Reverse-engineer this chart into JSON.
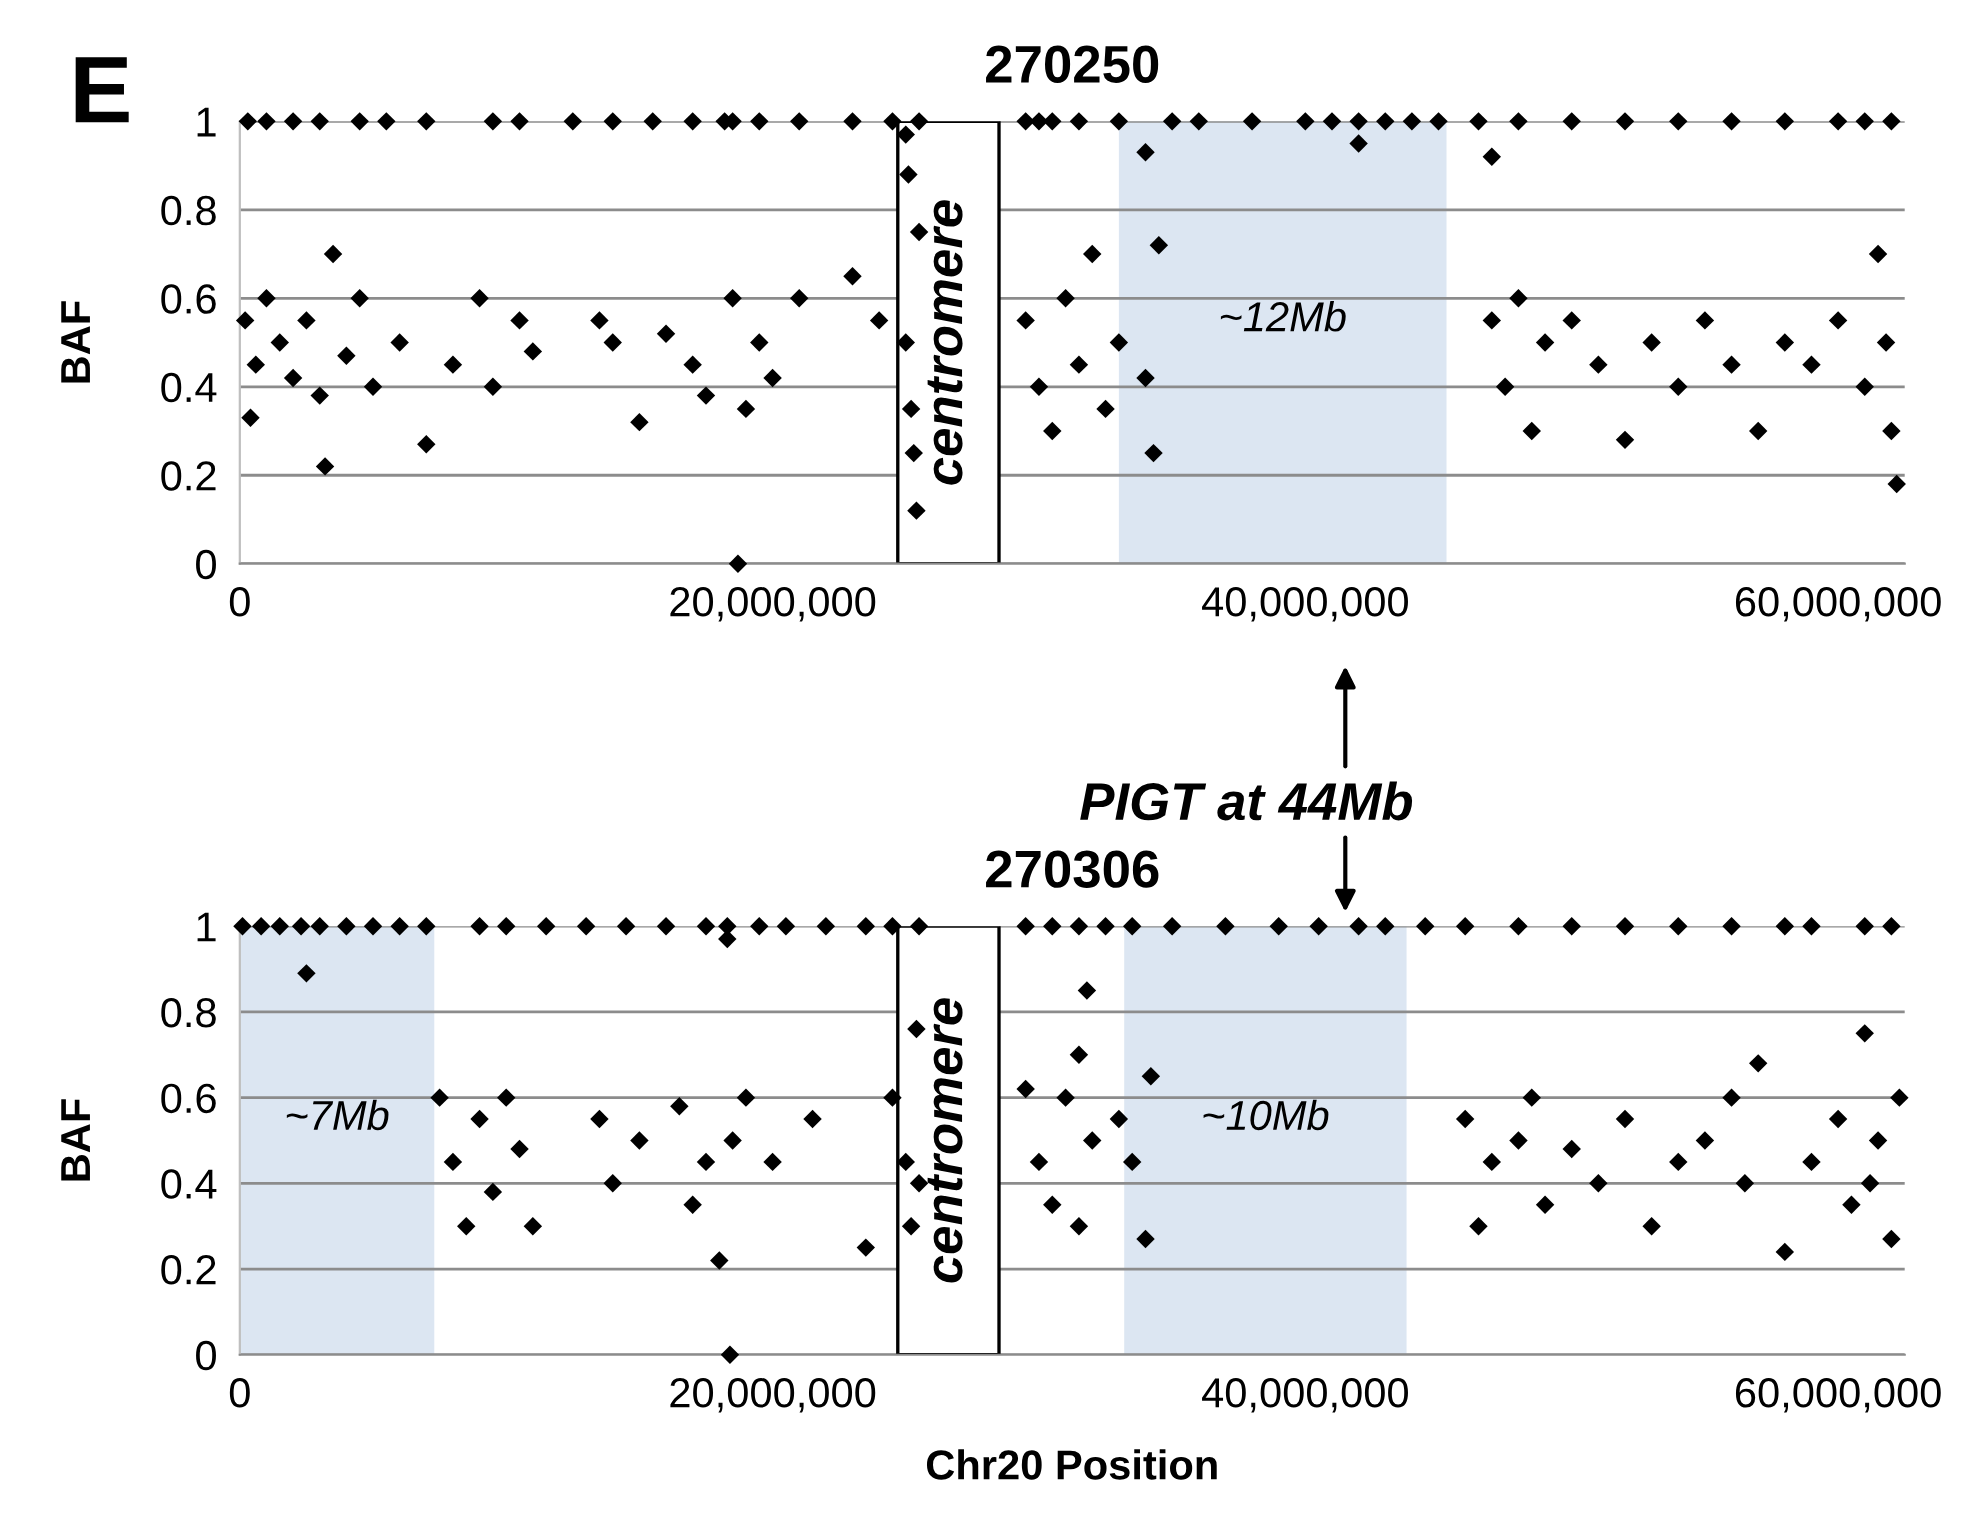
{
  "chart_data": [
    {
      "type": "scatter",
      "title": "270250",
      "ylabel": "BAF",
      "annotations": [
        "E"
      ],
      "marker": "diamond",
      "grid": "y",
      "xlim": [
        0,
        62500000
      ],
      "ylim": [
        0,
        1
      ],
      "xticks": [
        0,
        {
          "value": 20000000,
          "label": "20,000,000"
        },
        {
          "value": 40000000,
          "label": "40,000,000"
        },
        {
          "value": 60000000,
          "label": "60,000,000"
        }
      ],
      "yticks": [
        0,
        0.2,
        0.4,
        0.6,
        0.8,
        1
      ],
      "bands": [
        {
          "axis": "x",
          "from": 24700000,
          "to": 28500000,
          "label": "centromere",
          "color": "#ffffff"
        },
        {
          "axis": "x",
          "from": 33000000,
          "to": 45300000,
          "label": "~12Mb",
          "color": "#dce6f2"
        }
      ],
      "series": [
        {
          "color": "#000000",
          "x": [
            300000,
            1000000,
            2000000,
            3000000,
            4500000,
            5500000,
            7000000,
            9500000,
            10500000,
            12500000,
            14000000,
            15500000,
            17000000,
            18200000,
            18500000,
            19500000,
            21000000,
            23000000,
            24500000,
            25500000,
            30000000,
            29500000,
            30500000,
            31500000,
            33000000,
            35000000,
            36000000,
            38000000,
            40000000,
            41000000,
            42000000,
            43000000,
            44000000,
            45000000,
            46500000,
            48000000,
            50000000,
            52000000,
            54000000,
            56000000,
            58000000,
            60000000,
            61000000,
            62000000,
            200000,
            400000,
            600000,
            1000000,
            1500000,
            2000000,
            2500000,
            3000000,
            3200000,
            3500000,
            4000000,
            4500000,
            5000000,
            6000000,
            7000000,
            8000000,
            9000000,
            9500000,
            10500000,
            11000000,
            13500000,
            14000000,
            15000000,
            16000000,
            17000000,
            17500000,
            18500000,
            19000000,
            19500000,
            20000000,
            21000000,
            23000000,
            24000000,
            25000000,
            25200000,
            25400000,
            25500000,
            25300000,
            25100000,
            18700000,
            29500000,
            30000000,
            30500000,
            31000000,
            31500000,
            32000000,
            32500000,
            33000000,
            34000000,
            34500000,
            34300000,
            47000000,
            47500000,
            48000000,
            48500000,
            49000000,
            50000000,
            51000000,
            52000000,
            53000000,
            54000000,
            55000000,
            56000000,
            57000000,
            58000000,
            59000000,
            60000000,
            61000000,
            61500000,
            62000000,
            62200000,
            61800000,
            42000000,
            34000000,
            47000000,
            25000000
          ],
          "values": [
            1,
            1,
            1,
            1,
            1,
            1,
            1,
            1,
            1,
            1,
            1,
            1,
            1,
            1,
            1,
            1,
            1,
            1,
            1,
            1,
            1,
            1,
            1,
            1,
            1,
            1,
            1,
            1,
            1,
            1,
            1,
            1,
            1,
            1,
            1,
            1,
            1,
            1,
            1,
            1,
            1,
            1,
            1,
            1,
            0.55,
            0.33,
            0.45,
            0.6,
            0.5,
            0.42,
            0.55,
            0.38,
            0.22,
            0.7,
            0.47,
            0.6,
            0.4,
            0.5,
            0.27,
            0.45,
            0.6,
            0.4,
            0.55,
            0.48,
            0.55,
            0.5,
            0.32,
            0.52,
            0.45,
            0.38,
            0.6,
            0.35,
            0.5,
            0.42,
            0.6,
            0.65,
            0.55,
            0.5,
            0.35,
            0.12,
            0.75,
            0.25,
            0.88,
            0,
            0.55,
            0.4,
            0.3,
            0.6,
            0.45,
            0.7,
            0.35,
            0.5,
            0.42,
            0.72,
            0.25,
            0.55,
            0.4,
            0.6,
            0.3,
            0.5,
            0.55,
            0.45,
            0.28,
            0.5,
            0.4,
            0.55,
            0.45,
            0.3,
            0.5,
            0.45,
            0.55,
            0.4,
            0.7,
            0.3,
            0.18,
            0.5,
            0.95,
            0.93,
            0.92,
            0.97
          ]
        }
      ]
    },
    {
      "type": "scatter",
      "title": "270306",
      "ylabel": "BAF",
      "xlabel": "Chr20 Position",
      "annotations": [
        "PIGT at 44Mb"
      ],
      "marker": "diamond",
      "grid": "y",
      "xlim": [
        0,
        62500000
      ],
      "ylim": [
        0,
        1
      ],
      "xticks": [
        0,
        {
          "value": 20000000,
          "label": "20,000,000"
        },
        {
          "value": 40000000,
          "label": "40,000,000"
        },
        {
          "value": 60000000,
          "label": "60,000,000"
        }
      ],
      "yticks": [
        0,
        0.2,
        0.4,
        0.6,
        0.8,
        1
      ],
      "bands": [
        {
          "axis": "x",
          "from": 0,
          "to": 7300000,
          "label": "~7Mb",
          "color": "#dce6f2"
        },
        {
          "axis": "x",
          "from": 24700000,
          "to": 28500000,
          "label": "centromere",
          "color": "#ffffff"
        },
        {
          "axis": "x",
          "from": 33200000,
          "to": 43800000,
          "label": "~10Mb",
          "color": "#dce6f2"
        }
      ],
      "series": [
        {
          "color": "#000000",
          "x": [
            100000,
            800000,
            1500000,
            2300000,
            3000000,
            4000000,
            5000000,
            6000000,
            7000000,
            9000000,
            10000000,
            11500000,
            13000000,
            14500000,
            16000000,
            17500000,
            18300000,
            19500000,
            20500000,
            22000000,
            24500000,
            25500000,
            23500000,
            29500000,
            30500000,
            31500000,
            32500000,
            33500000,
            35000000,
            37000000,
            39000000,
            40500000,
            42000000,
            43000000,
            44500000,
            46000000,
            48000000,
            50000000,
            52000000,
            54000000,
            56000000,
            58000000,
            59000000,
            61000000,
            62000000,
            2500000,
            7500000,
            8000000,
            8500000,
            9000000,
            9500000,
            10000000,
            10500000,
            11000000,
            13500000,
            14000000,
            15000000,
            16500000,
            17000000,
            17500000,
            18000000,
            18500000,
            19000000,
            20000000,
            21500000,
            23500000,
            24500000,
            25000000,
            25200000,
            25400000,
            25500000,
            18400000,
            29500000,
            30000000,
            30500000,
            31000000,
            31500000,
            31800000,
            32000000,
            33000000,
            33500000,
            34000000,
            34200000,
            46000000,
            46500000,
            47000000,
            48000000,
            48500000,
            49000000,
            50000000,
            51000000,
            52000000,
            53000000,
            54000000,
            55000000,
            56000000,
            56500000,
            57000000,
            58000000,
            59000000,
            60000000,
            60500000,
            61000000,
            61500000,
            62000000,
            62300000,
            61200000,
            31500000,
            18300000
          ],
          "values": [
            1,
            1,
            1,
            1,
            1,
            1,
            1,
            1,
            1,
            1,
            1,
            1,
            1,
            1,
            1,
            1,
            1,
            1,
            1,
            1,
            1,
            1,
            1,
            1,
            1,
            1,
            1,
            1,
            1,
            1,
            1,
            1,
            1,
            1,
            1,
            1,
            1,
            1,
            1,
            1,
            1,
            1,
            1,
            1,
            1,
            0.89,
            0.6,
            0.45,
            0.3,
            0.55,
            0.38,
            0.6,
            0.48,
            0.3,
            0.55,
            0.4,
            0.5,
            0.58,
            0.35,
            0.45,
            0.22,
            0.5,
            0.6,
            0.45,
            0.55,
            0.25,
            0.6,
            0.45,
            0.3,
            0.76,
            0.4,
            0,
            0.62,
            0.45,
            0.35,
            0.6,
            0.3,
            0.85,
            0.5,
            0.55,
            0.45,
            0.27,
            0.65,
            0.55,
            0.3,
            0.45,
            0.5,
            0.6,
            0.35,
            0.48,
            0.4,
            0.55,
            0.3,
            0.45,
            0.5,
            0.6,
            0.4,
            0.68,
            0.24,
            0.45,
            0.55,
            0.35,
            0.75,
            0.5,
            0.27,
            0.6,
            0.4,
            0.7,
            0.97
          ]
        }
      ]
    }
  ]
}
